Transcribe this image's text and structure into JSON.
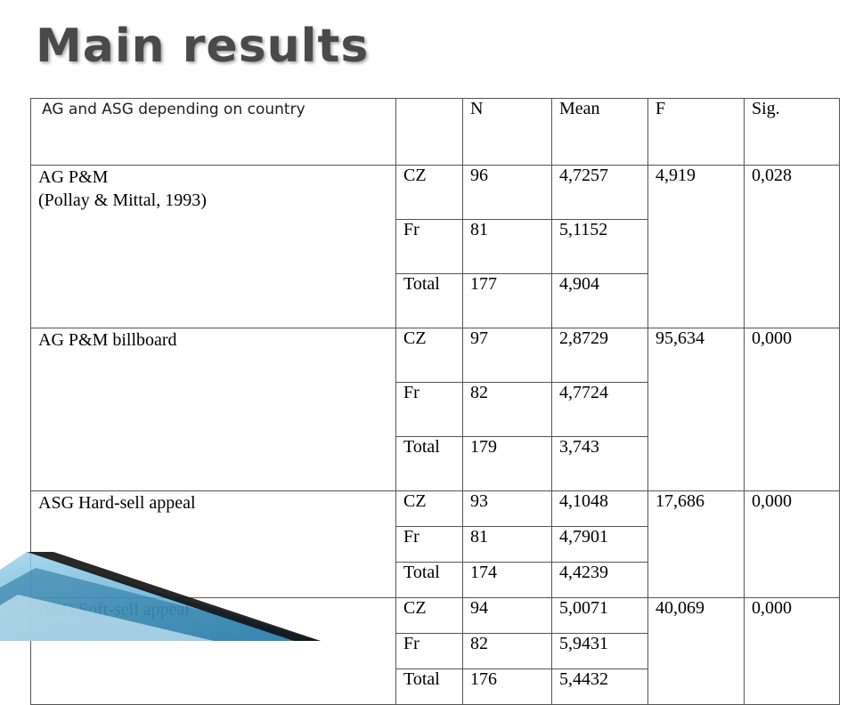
{
  "title": "Main results",
  "table": {
    "header": {
      "label": "AG and ASG depending on country",
      "group": "",
      "n": "N",
      "mean": "Mean",
      "f": "F",
      "sig": "Sig."
    },
    "groups": [
      {
        "label": "AG P&M\n(Pollay & Mittal, 1993)",
        "f": "4,919",
        "sig": "0,028",
        "rows": [
          {
            "country": "CZ",
            "n": "96",
            "mean": "4,7257"
          },
          {
            "country": "Fr",
            "n": "81",
            "mean": "5,1152"
          },
          {
            "country": "Total",
            "n": "177",
            "mean": "4,904"
          }
        ]
      },
      {
        "label": "AG P&M billboard",
        "f": "95,634",
        "sig": "0,000",
        "rows": [
          {
            "country": "CZ",
            "n": "97",
            "mean": "2,8729"
          },
          {
            "country": "Fr",
            "n": "82",
            "mean": "4,7724"
          },
          {
            "country": "Total",
            "n": "179",
            "mean": "3,743"
          }
        ]
      },
      {
        "label": "ASG Hard-sell appeal",
        "f": "17,686",
        "sig": "0,000",
        "rows": [
          {
            "country": "CZ",
            "n": "93",
            "mean": "4,1048"
          },
          {
            "country": "Fr",
            "n": "81",
            "mean": "4,7901"
          },
          {
            "country": "Total",
            "n": "174",
            "mean": "4,4239"
          }
        ]
      },
      {
        "label": "ASG Soft-sell appeal",
        "f": "40,069",
        "sig": "0,000",
        "rows": [
          {
            "country": "CZ",
            "n": "94",
            "mean": "5,0071"
          },
          {
            "country": "Fr",
            "n": "82",
            "mean": "5,9431"
          },
          {
            "country": "Total",
            "n": "176",
            "mean": "5,4432"
          }
        ]
      }
    ]
  },
  "colors": {
    "title": "#4a4a4a",
    "border": "#555555",
    "accent_blue": "#2f8fc0",
    "accent_light": "#9cd3ea"
  }
}
